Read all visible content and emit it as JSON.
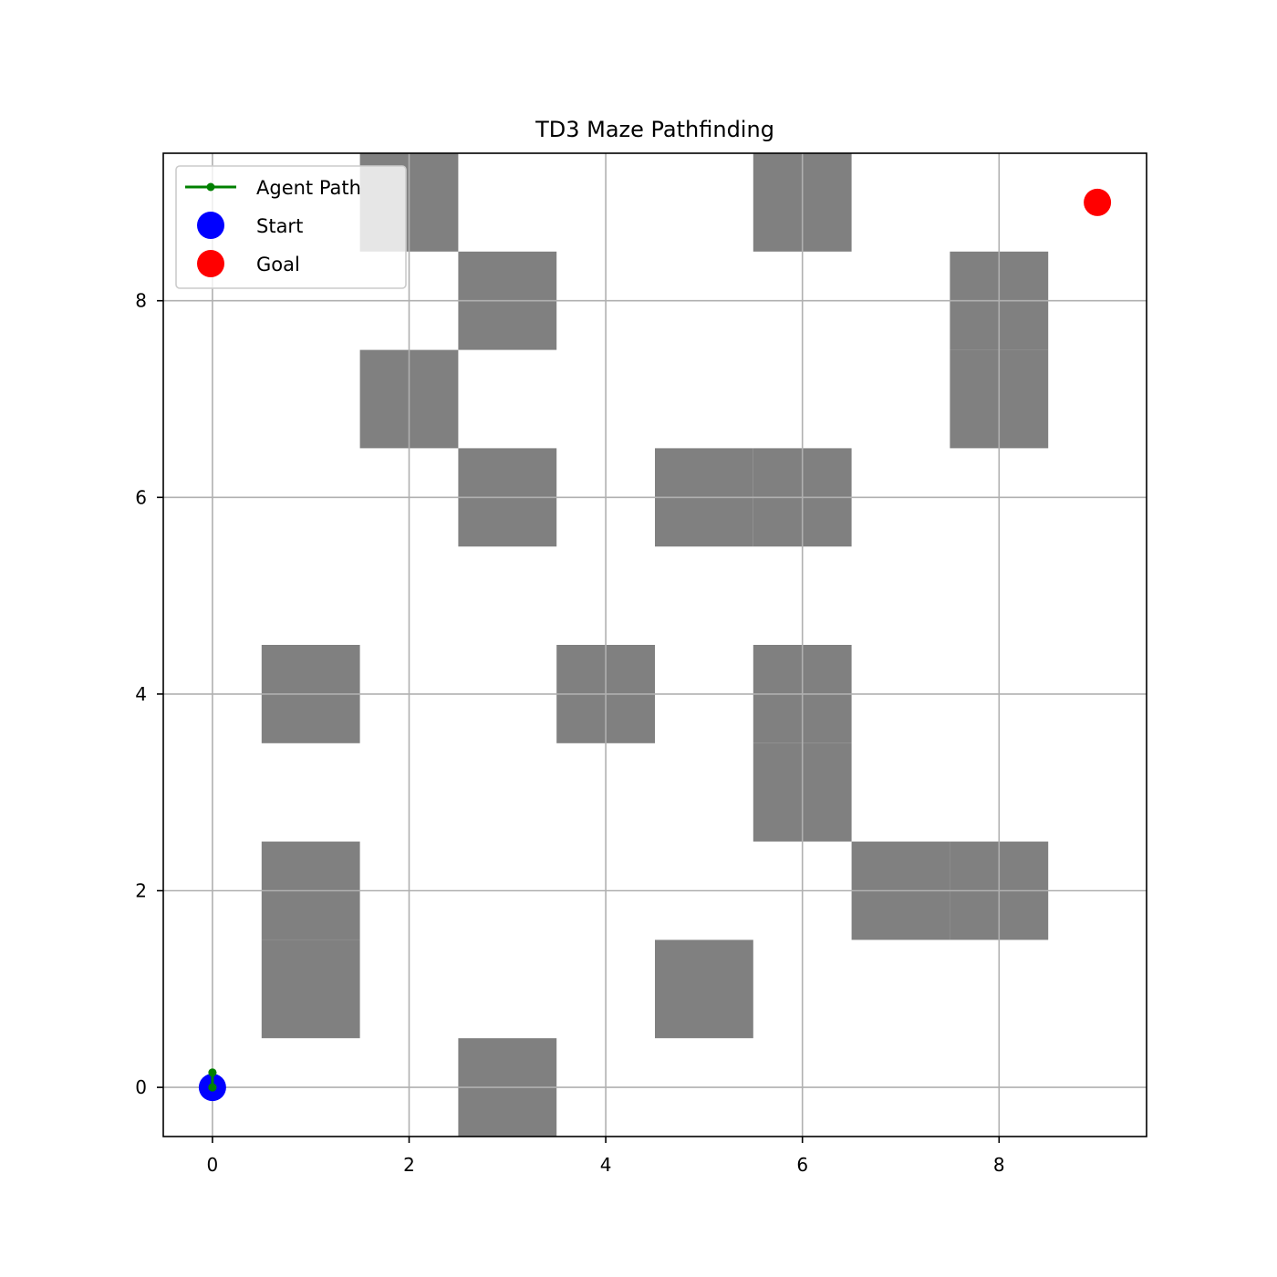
{
  "chart_data": {
    "type": "scatter",
    "title": "TD3 Maze Pathfinding",
    "xlabel": "",
    "ylabel": "",
    "xlim": [
      -0.5,
      9.5
    ],
    "ylim": [
      -0.5,
      9.5
    ],
    "xticks": [
      0,
      2,
      4,
      6,
      8
    ],
    "yticks": [
      0,
      2,
      4,
      6,
      8
    ],
    "grid": true,
    "legend_placement": "top-left",
    "grid_size": [
      10,
      10
    ],
    "obstacles": [
      [
        2,
        9
      ],
      [
        6,
        9
      ],
      [
        3,
        8
      ],
      [
        8,
        8
      ],
      [
        2,
        7
      ],
      [
        8,
        7
      ],
      [
        3,
        6
      ],
      [
        5,
        6
      ],
      [
        6,
        6
      ],
      [
        1,
        4
      ],
      [
        4,
        4
      ],
      [
        6,
        4
      ],
      [
        6,
        3
      ],
      [
        1,
        2
      ],
      [
        7,
        2
      ],
      [
        8,
        2
      ],
      [
        1,
        1
      ],
      [
        5,
        1
      ],
      [
        3,
        0
      ]
    ],
    "series": [
      {
        "name": "Agent Path",
        "kind": "line",
        "color": "#008000",
        "points": [
          [
            0,
            0
          ],
          [
            0,
            0.15
          ],
          [
            0,
            0
          ]
        ]
      },
      {
        "name": "Start",
        "kind": "scatter",
        "color": "#0000ff",
        "points": [
          [
            0,
            0
          ]
        ]
      },
      {
        "name": "Goal",
        "kind": "scatter",
        "color": "#ff0000",
        "points": [
          [
            9,
            9
          ]
        ]
      }
    ],
    "colors": {
      "obstacle": "#808080",
      "grid": "#b0b0b0",
      "axes": "#000000"
    }
  }
}
